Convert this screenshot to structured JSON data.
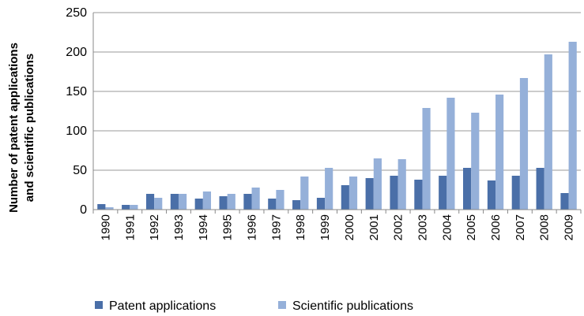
{
  "chart_data": {
    "type": "bar",
    "y_label": [
      "Number of patent applications",
      "and  scientific publications"
    ],
    "categories": [
      "1990",
      "1991",
      "1992",
      "1993",
      "1994",
      "1995",
      "1996",
      "1997",
      "1998",
      "1999",
      "2000",
      "2001",
      "2002",
      "2003",
      "2004",
      "2005",
      "2006",
      "2007",
      "2008",
      "2009"
    ],
    "series": [
      {
        "name": "Patent applications",
        "color": "#4a6fa8",
        "values": [
          7,
          6,
          20,
          20,
          14,
          17,
          20,
          14,
          12,
          15,
          31,
          40,
          43,
          38,
          43,
          53,
          37,
          43,
          53,
          21
        ]
      },
      {
        "name": "Scientific publications",
        "color": "#95b0d9",
        "values": [
          3,
          6,
          15,
          20,
          23,
          20,
          28,
          25,
          42,
          53,
          42,
          65,
          64,
          129,
          142,
          123,
          146,
          167,
          197,
          213
        ]
      }
    ],
    "ylim": [
      0,
      250
    ],
    "yticks": [
      0,
      50,
      100,
      150,
      200,
      250
    ],
    "grid": true
  }
}
